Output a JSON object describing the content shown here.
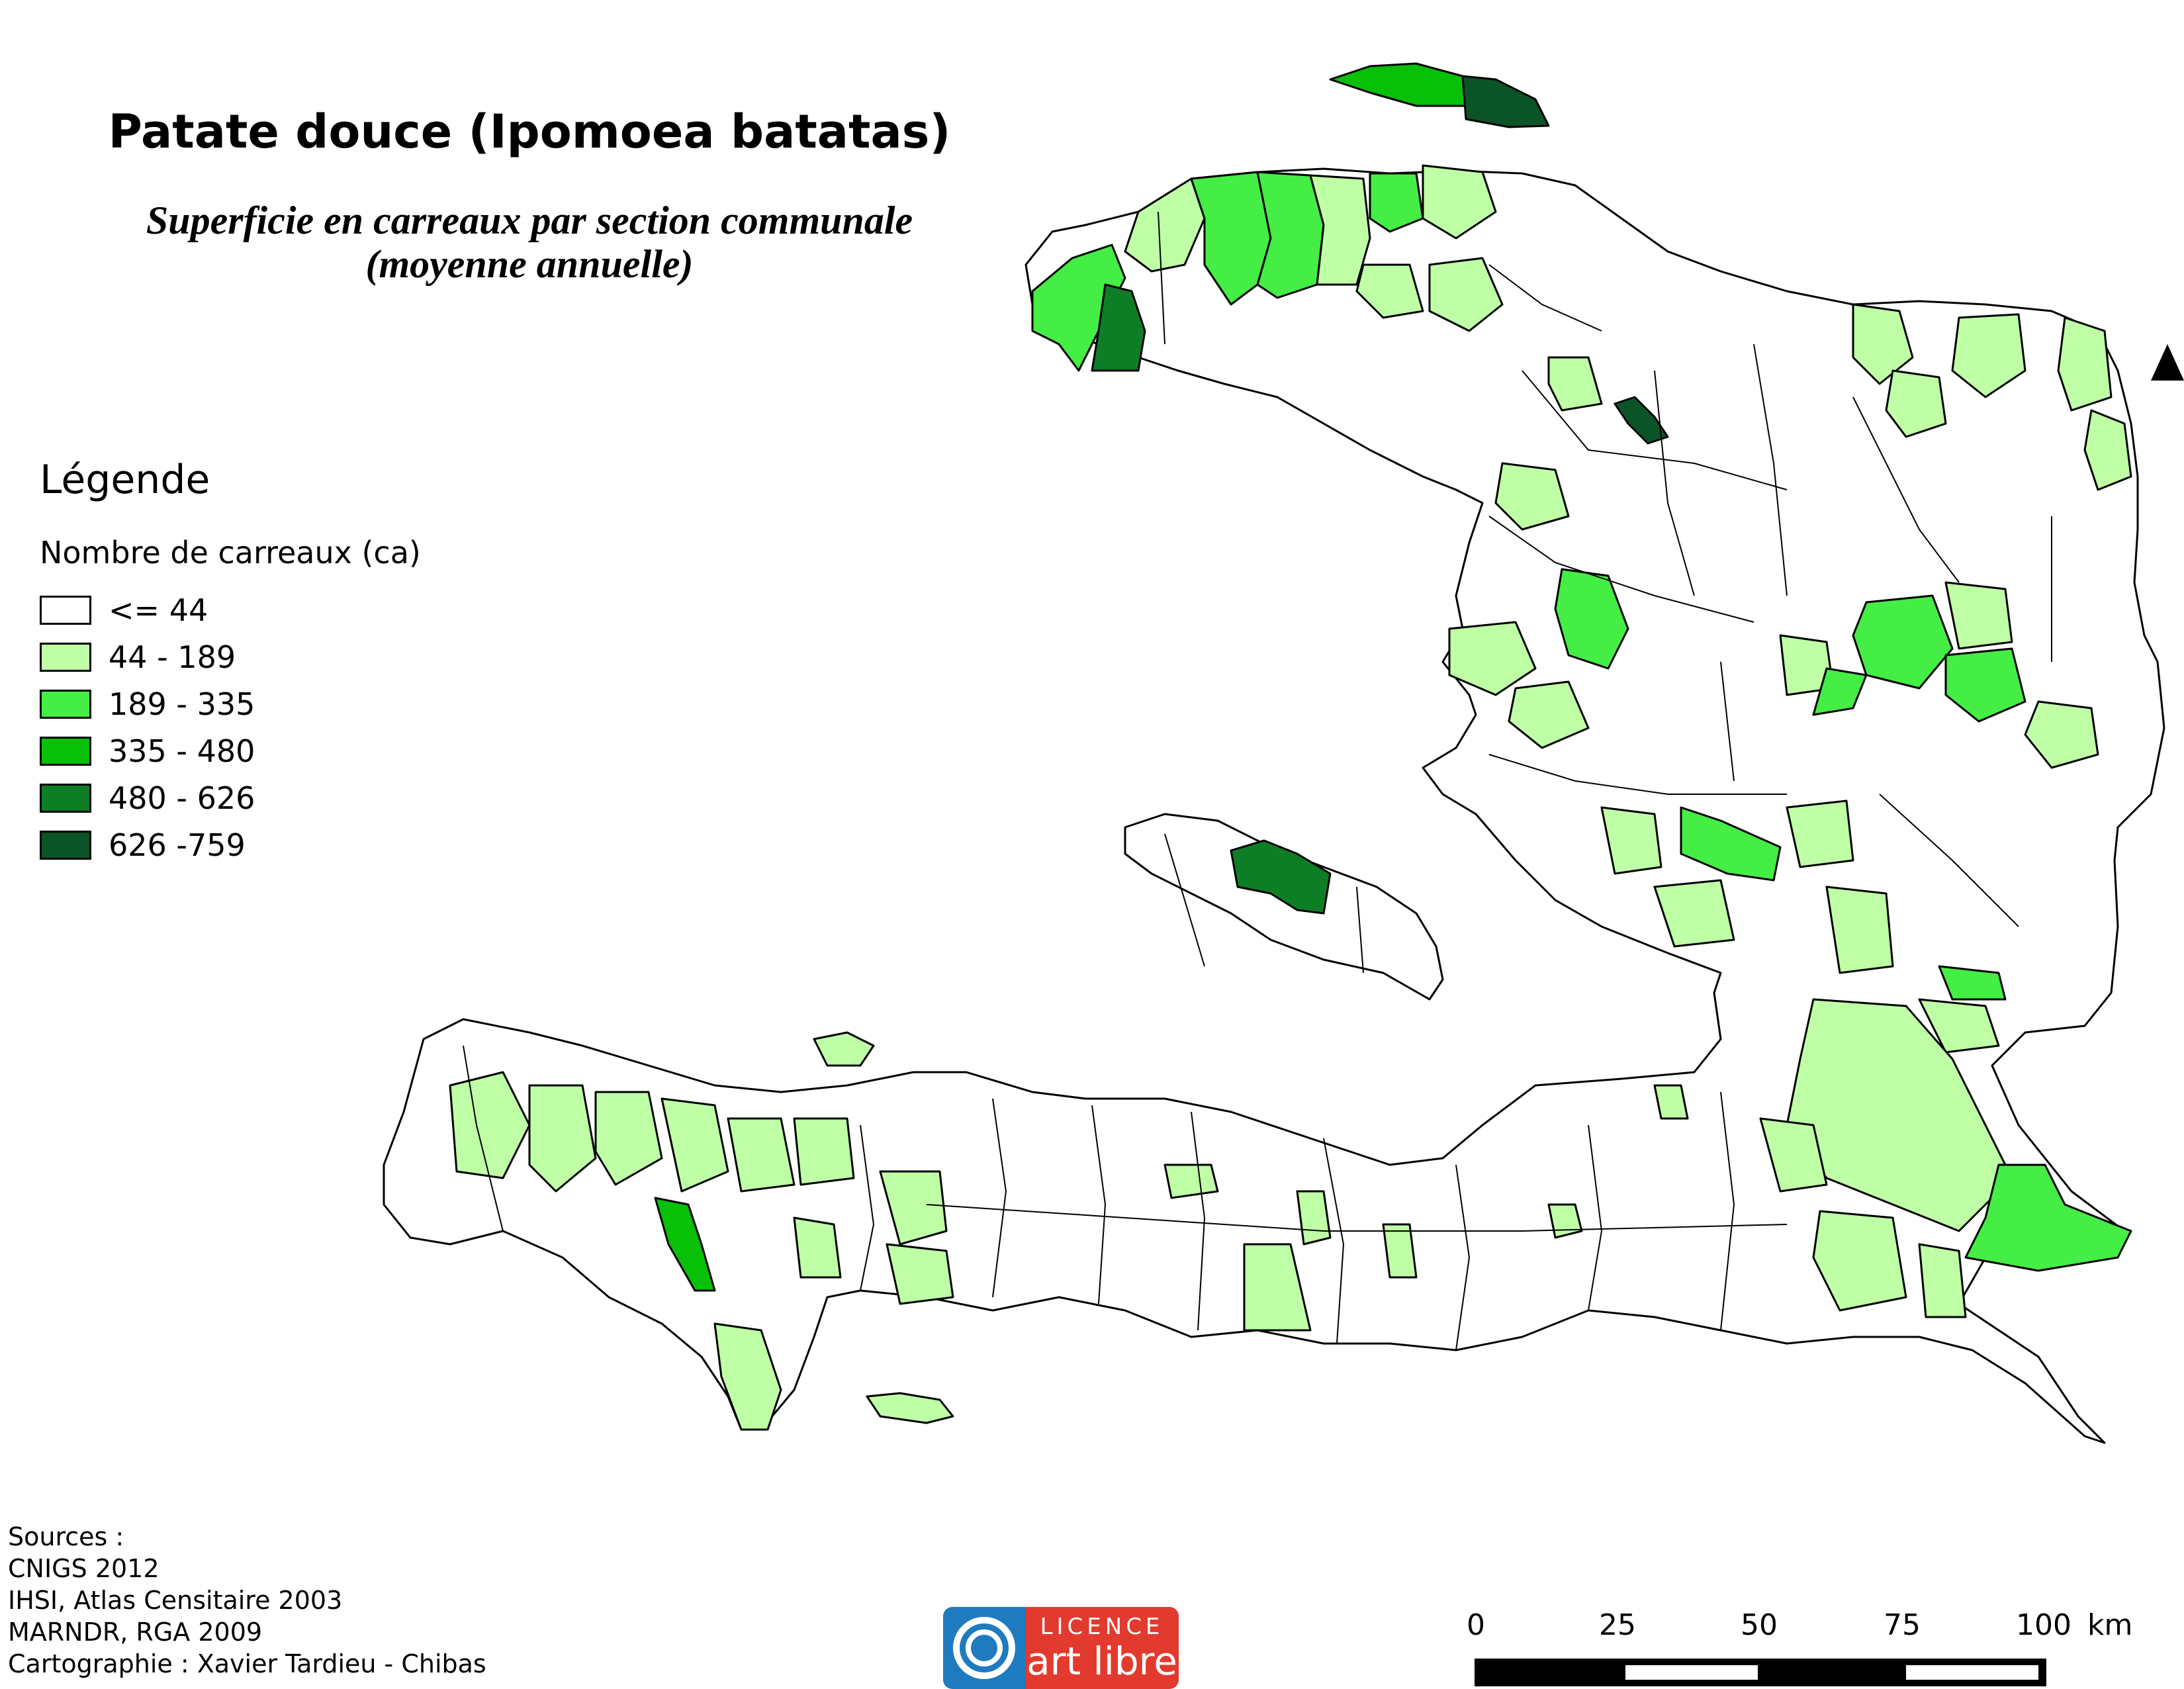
{
  "title": "Patate douce (Ipomoea batatas)",
  "subtitle_line1": "Superficie en carreaux par section communale",
  "subtitle_line2": "(moyenne annuelle)",
  "legend": {
    "title": "Légende",
    "subtitle": "Nombre de carreaux (ca)",
    "classes": [
      {
        "label": "<= 44",
        "color": "#ffffff"
      },
      {
        "label": "44 - 189",
        "color": "#bfffa6"
      },
      {
        "label": "189 - 335",
        "color": "#44ee44"
      },
      {
        "label": "335 - 480",
        "color": "#08c008"
      },
      {
        "label": "480 - 626",
        "color": "#0e7e26"
      },
      {
        "label": "626 -759",
        "color": "#0b5428"
      }
    ]
  },
  "sources": {
    "heading": "Sources :",
    "lines": [
      "CNIGS 2012",
      "IHSI, Atlas Censitaire 2003",
      "MARNDR, RGA 2009",
      "Cartographie : Xavier Tardieu - Chibas"
    ]
  },
  "license": {
    "top": "LICENCE",
    "bottom": "art libre"
  },
  "scale_bar": {
    "ticks": [
      "0",
      "25",
      "50",
      "75",
      "100"
    ],
    "unit": "km"
  },
  "north_arrow": "north-arrow-icon"
}
